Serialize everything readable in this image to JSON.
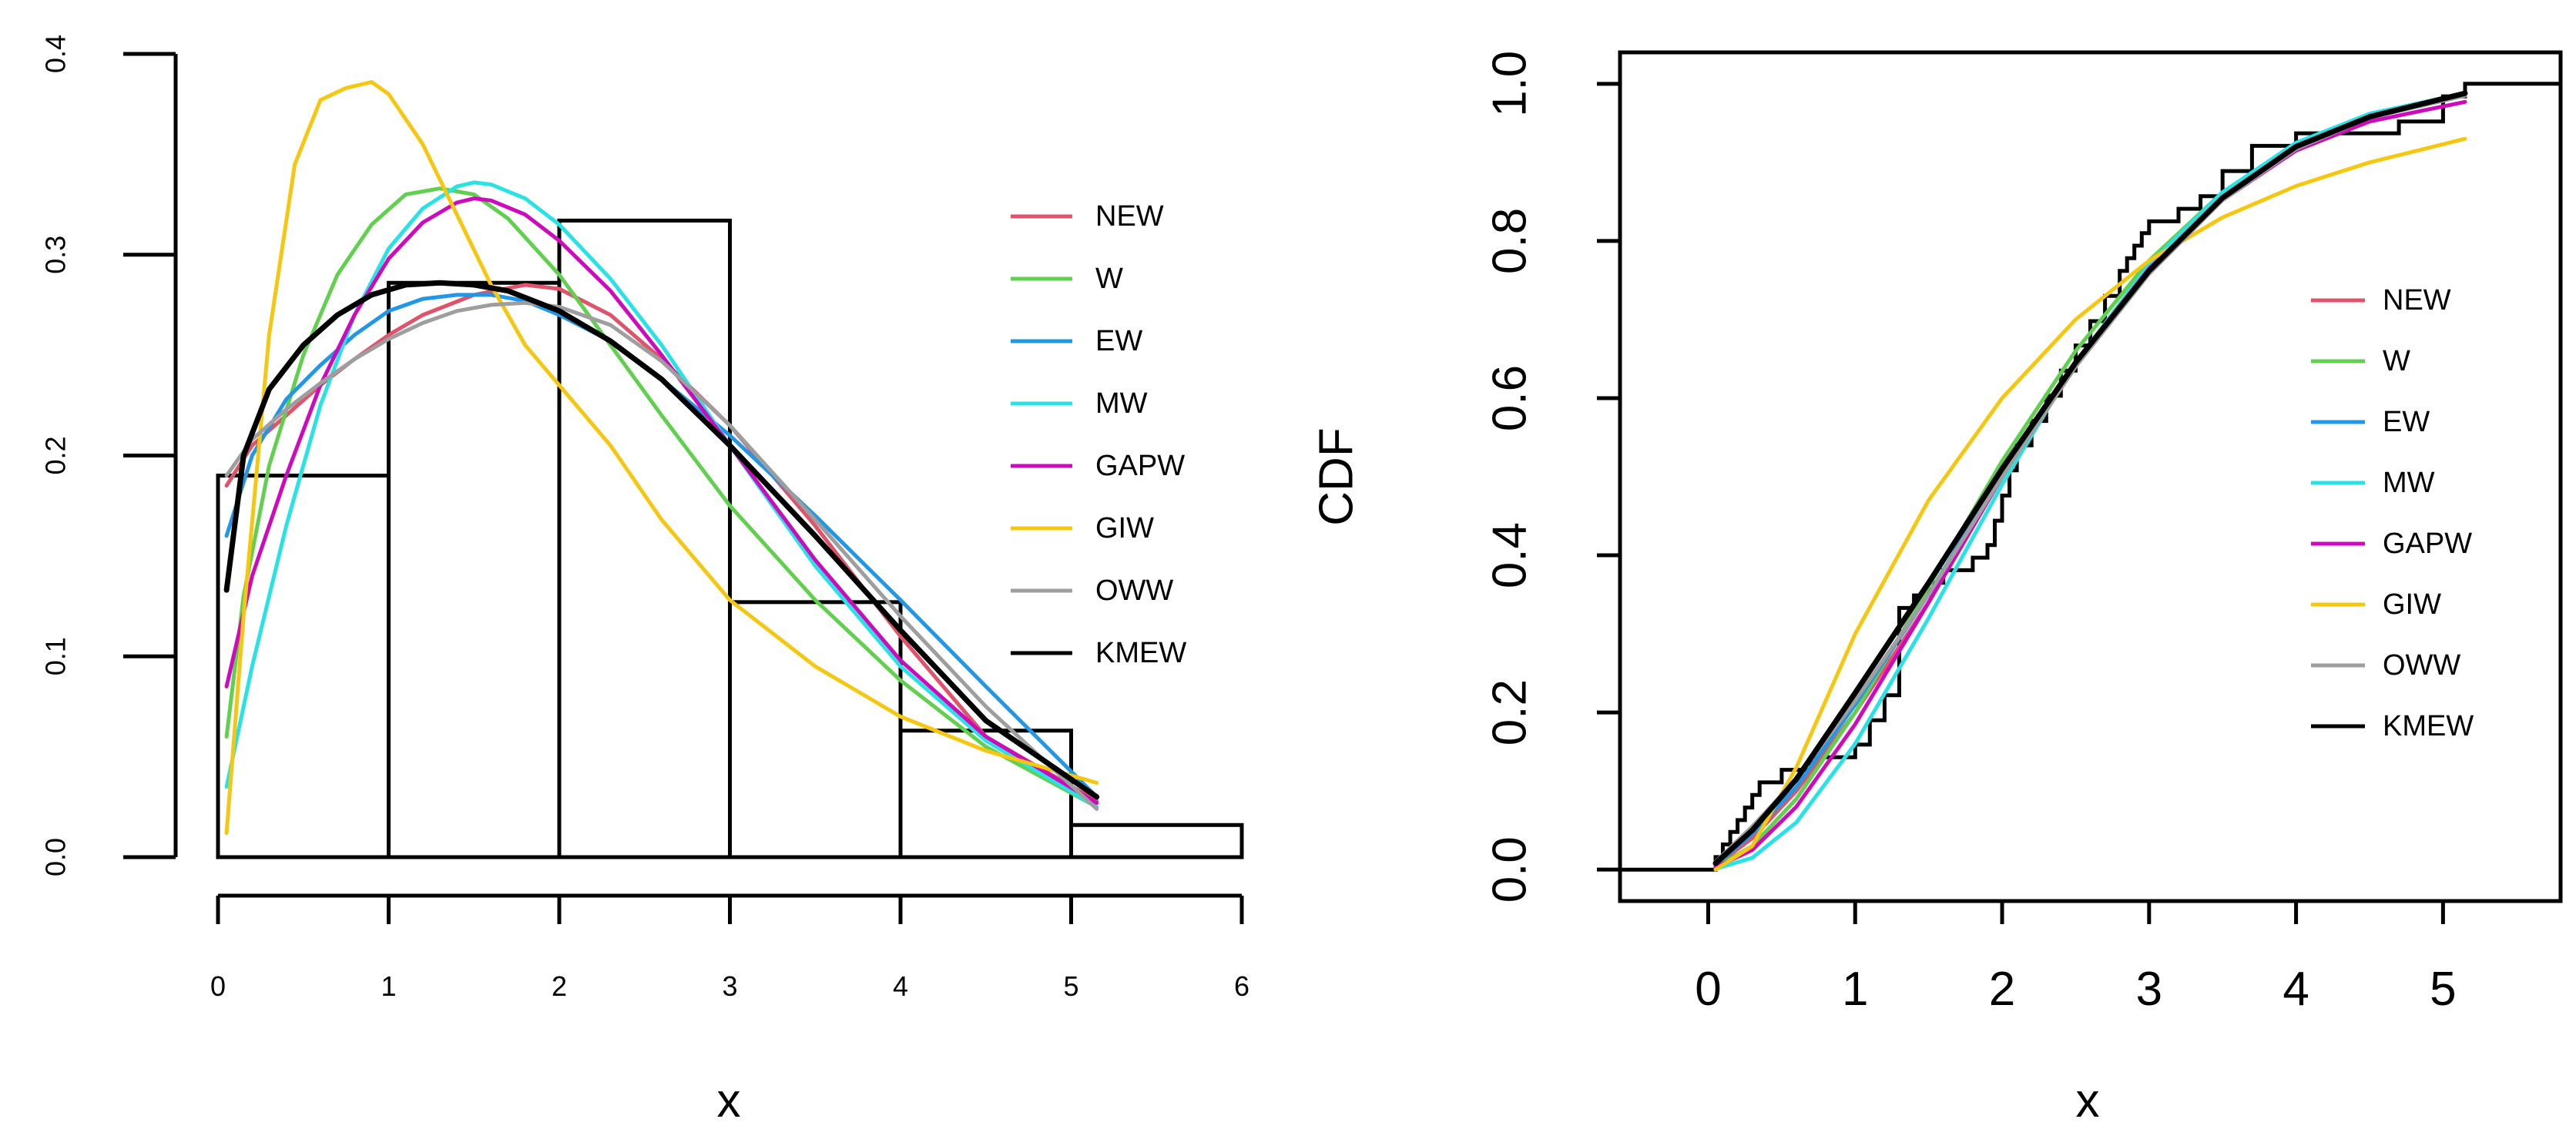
{
  "chart_data": [
    {
      "id": "left",
      "type": "histogram with density curves",
      "title": "",
      "xlabel": "x",
      "ylabel": "",
      "xlim": [
        0,
        6
      ],
      "ylim": [
        0,
        0.4
      ],
      "x_ticks": [
        "0",
        "1",
        "2",
        "3",
        "4",
        "5",
        "6"
      ],
      "y_ticks": [
        "0.0",
        "0.1",
        "0.2",
        "0.3",
        "0.4"
      ],
      "legend_position": "right",
      "histogram": {
        "breaks": [
          0,
          1,
          2,
          3,
          4,
          5,
          6
        ],
        "heights": [
          0.19,
          0.286,
          0.317,
          0.127,
          0.063,
          0.016
        ]
      },
      "series": [
        {
          "name": "NEW",
          "color": "#DF536B",
          "x": [
            0.05,
            0.2,
            0.4,
            0.6,
            0.8,
            1.0,
            1.2,
            1.5,
            1.8,
            2.0,
            2.3,
            2.6,
            3.0,
            3.5,
            4.0,
            4.5,
            5.15
          ],
          "y": [
            0.185,
            0.205,
            0.22,
            0.235,
            0.248,
            0.26,
            0.27,
            0.28,
            0.285,
            0.283,
            0.27,
            0.248,
            0.215,
            0.165,
            0.11,
            0.06,
            0.028
          ]
        },
        {
          "name": "W",
          "color": "#61D04F",
          "x": [
            0.05,
            0.15,
            0.3,
            0.5,
            0.7,
            0.9,
            1.1,
            1.3,
            1.5,
            1.7,
            2.0,
            2.3,
            2.6,
            3.0,
            3.5,
            4.0,
            4.5,
            5.15
          ],
          "y": [
            0.06,
            0.13,
            0.195,
            0.25,
            0.29,
            0.315,
            0.33,
            0.333,
            0.33,
            0.318,
            0.29,
            0.255,
            0.22,
            0.175,
            0.128,
            0.088,
            0.055,
            0.025
          ]
        },
        {
          "name": "EW",
          "color": "#2297E6",
          "x": [
            0.05,
            0.2,
            0.4,
            0.6,
            0.8,
            1.0,
            1.2,
            1.4,
            1.6,
            1.8,
            2.0,
            2.3,
            2.6,
            3.0,
            3.5,
            4.0,
            4.5,
            5.15
          ],
          "y": [
            0.16,
            0.2,
            0.228,
            0.245,
            0.26,
            0.272,
            0.278,
            0.28,
            0.28,
            0.277,
            0.27,
            0.257,
            0.238,
            0.21,
            0.17,
            0.128,
            0.085,
            0.03
          ]
        },
        {
          "name": "MW",
          "color": "#28E2E5",
          "x": [
            0.05,
            0.2,
            0.4,
            0.6,
            0.8,
            1.0,
            1.2,
            1.4,
            1.5,
            1.6,
            1.8,
            2.0,
            2.3,
            2.6,
            3.0,
            3.5,
            4.0,
            4.5,
            5.15
          ],
          "y": [
            0.035,
            0.095,
            0.165,
            0.225,
            0.27,
            0.303,
            0.323,
            0.334,
            0.336,
            0.335,
            0.328,
            0.315,
            0.288,
            0.255,
            0.205,
            0.145,
            0.095,
            0.058,
            0.025
          ]
        },
        {
          "name": "GAPW",
          "color": "#CD0BBC",
          "x": [
            0.05,
            0.2,
            0.4,
            0.6,
            0.8,
            1.0,
            1.2,
            1.4,
            1.5,
            1.6,
            1.8,
            2.0,
            2.3,
            2.6,
            3.0,
            3.5,
            4.0,
            4.5,
            5.15
          ],
          "y": [
            0.085,
            0.14,
            0.19,
            0.235,
            0.27,
            0.298,
            0.316,
            0.326,
            0.328,
            0.327,
            0.32,
            0.307,
            0.282,
            0.25,
            0.205,
            0.148,
            0.098,
            0.06,
            0.027
          ]
        },
        {
          "name": "GIW",
          "color": "#F5C710",
          "x": [
            0.05,
            0.15,
            0.3,
            0.45,
            0.6,
            0.75,
            0.9,
            1.0,
            1.2,
            1.4,
            1.6,
            1.8,
            2.0,
            2.3,
            2.6,
            3.0,
            3.5,
            4.0,
            4.5,
            5.15
          ],
          "y": [
            0.012,
            0.12,
            0.26,
            0.345,
            0.377,
            0.383,
            0.386,
            0.38,
            0.355,
            0.32,
            0.285,
            0.255,
            0.235,
            0.205,
            0.168,
            0.128,
            0.095,
            0.07,
            0.053,
            0.037
          ]
        },
        {
          "name": "OWW",
          "color": "#9E9E9E",
          "x": [
            0.05,
            0.2,
            0.4,
            0.6,
            0.8,
            1.0,
            1.2,
            1.4,
            1.6,
            1.8,
            2.0,
            2.3,
            2.6,
            3.0,
            3.5,
            4.0,
            4.5,
            5.15
          ],
          "y": [
            0.19,
            0.208,
            0.223,
            0.236,
            0.248,
            0.258,
            0.266,
            0.272,
            0.275,
            0.276,
            0.274,
            0.265,
            0.247,
            0.215,
            0.168,
            0.12,
            0.075,
            0.024
          ]
        },
        {
          "name": "KMEW",
          "color": "#000000",
          "x": [
            0.05,
            0.15,
            0.3,
            0.5,
            0.7,
            0.9,
            1.1,
            1.3,
            1.5,
            1.7,
            2.0,
            2.3,
            2.6,
            3.0,
            3.5,
            4.0,
            4.5,
            5.15
          ],
          "y": [
            0.133,
            0.2,
            0.233,
            0.255,
            0.27,
            0.28,
            0.285,
            0.286,
            0.285,
            0.282,
            0.272,
            0.257,
            0.238,
            0.205,
            0.16,
            0.113,
            0.068,
            0.03
          ]
        }
      ]
    },
    {
      "id": "right",
      "type": "empirical cdf with fitted cdf curves",
      "title": "",
      "xlabel": "x",
      "ylabel": "CDF",
      "xlim": [
        -0.6,
        5.8
      ],
      "ylim": [
        -0.04,
        1.04
      ],
      "x_ticks": [
        "0",
        "1",
        "2",
        "3",
        "4",
        "5"
      ],
      "y_ticks": [
        "0.0",
        "0.2",
        "0.4",
        "0.6",
        "0.8",
        "1.0"
      ],
      "legend_position": "right",
      "ecdf": {
        "x": [
          -0.6,
          0.05,
          0.1,
          0.15,
          0.2,
          0.25,
          0.3,
          0.35,
          0.4,
          0.5,
          0.6,
          0.7,
          0.8,
          0.9,
          1.0,
          1.1,
          1.2,
          1.3,
          1.4,
          1.5,
          1.6,
          1.7,
          1.8,
          1.9,
          1.95,
          2.0,
          2.05,
          2.1,
          2.2,
          2.3,
          2.4,
          2.5,
          2.6,
          2.7,
          2.8,
          2.85,
          2.9,
          2.95,
          3.0,
          3.1,
          3.2,
          3.35,
          3.5,
          3.7,
          3.9,
          4.0,
          4.2,
          4.5,
          4.7,
          5.0,
          5.15,
          5.8
        ],
        "y": [
          0,
          0.016,
          0.032,
          0.048,
          0.063,
          0.079,
          0.095,
          0.111,
          0.111,
          0.127,
          0.127,
          0.143,
          0.143,
          0.143,
          0.159,
          0.19,
          0.222,
          0.333,
          0.349,
          0.365,
          0.381,
          0.381,
          0.397,
          0.413,
          0.444,
          0.476,
          0.508,
          0.54,
          0.571,
          0.603,
          0.635,
          0.667,
          0.698,
          0.73,
          0.762,
          0.778,
          0.794,
          0.81,
          0.825,
          0.825,
          0.841,
          0.857,
          0.889,
          0.921,
          0.921,
          0.937,
          0.937,
          0.937,
          0.952,
          0.984,
          1.0,
          1.0
        ]
      },
      "series": [
        {
          "name": "NEW",
          "color": "#DF536B",
          "x": [
            0.05,
            0.3,
            0.6,
            1.0,
            1.5,
            2.0,
            2.5,
            3.0,
            3.5,
            4.0,
            4.5,
            5.15
          ],
          "y": [
            0.005,
            0.04,
            0.1,
            0.2,
            0.34,
            0.5,
            0.64,
            0.76,
            0.855,
            0.92,
            0.958,
            0.985
          ]
        },
        {
          "name": "W",
          "color": "#61D04F",
          "x": [
            0.05,
            0.3,
            0.6,
            1.0,
            1.5,
            2.0,
            2.5,
            3.0,
            3.5,
            4.0,
            4.5,
            5.15
          ],
          "y": [
            0.003,
            0.03,
            0.09,
            0.2,
            0.36,
            0.52,
            0.66,
            0.775,
            0.862,
            0.922,
            0.958,
            0.985
          ]
        },
        {
          "name": "EW",
          "color": "#2297E6",
          "x": [
            0.05,
            0.3,
            0.6,
            1.0,
            1.5,
            2.0,
            2.5,
            3.0,
            3.5,
            4.0,
            4.5,
            5.15
          ],
          "y": [
            0.006,
            0.045,
            0.105,
            0.21,
            0.35,
            0.505,
            0.645,
            0.762,
            0.855,
            0.918,
            0.957,
            0.985
          ]
        },
        {
          "name": "MW",
          "color": "#28E2E5",
          "x": [
            0.05,
            0.3,
            0.6,
            1.0,
            1.5,
            2.0,
            2.5,
            3.0,
            3.5,
            4.0,
            4.5,
            5.15
          ],
          "y": [
            0.001,
            0.015,
            0.06,
            0.16,
            0.32,
            0.49,
            0.645,
            0.77,
            0.862,
            0.925,
            0.962,
            0.988
          ]
        },
        {
          "name": "GAPW",
          "color": "#CD0BBC",
          "x": [
            0.05,
            0.3,
            0.6,
            1.0,
            1.5,
            2.0,
            2.5,
            3.0,
            3.5,
            4.0,
            4.5,
            5.15
          ],
          "y": [
            0.003,
            0.025,
            0.08,
            0.185,
            0.34,
            0.5,
            0.645,
            0.765,
            0.852,
            0.915,
            0.952,
            0.977
          ]
        },
        {
          "name": "GIW",
          "color": "#F5C710",
          "x": [
            0.05,
            0.3,
            0.6,
            1.0,
            1.5,
            2.0,
            2.5,
            3.0,
            3.5,
            4.0,
            4.5,
            5.15
          ],
          "y": [
            0.0,
            0.03,
            0.13,
            0.3,
            0.47,
            0.6,
            0.7,
            0.775,
            0.83,
            0.87,
            0.9,
            0.93
          ]
        },
        {
          "name": "OWW",
          "color": "#9E9E9E",
          "x": [
            0.05,
            0.3,
            0.6,
            1.0,
            1.5,
            2.0,
            2.5,
            3.0,
            3.5,
            4.0,
            4.5,
            5.15
          ],
          "y": [
            0.01,
            0.055,
            0.115,
            0.215,
            0.35,
            0.5,
            0.64,
            0.758,
            0.852,
            0.917,
            0.957,
            0.985
          ]
        },
        {
          "name": "KMEW",
          "color": "#000000",
          "x": [
            0.05,
            0.3,
            0.6,
            1.0,
            1.5,
            2.0,
            2.5,
            3.0,
            3.5,
            4.0,
            4.5,
            5.15
          ],
          "y": [
            0.008,
            0.05,
            0.115,
            0.225,
            0.365,
            0.51,
            0.645,
            0.762,
            0.855,
            0.92,
            0.958,
            0.988
          ]
        }
      ]
    }
  ]
}
